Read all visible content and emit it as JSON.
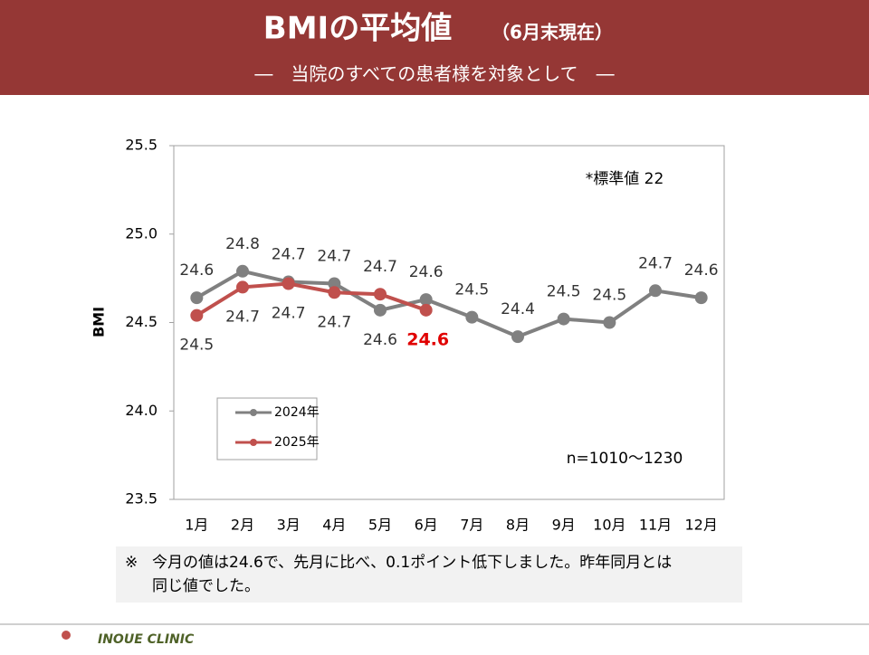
{
  "header": {
    "title": "BMIの平均値",
    "title_note": "（6月末現在）",
    "subtitle": "―　当院のすべての患者様を対象として　―"
  },
  "chart_data": {
    "type": "line",
    "y_label": "BMI",
    "categories": [
      "1月",
      "2月",
      "3月",
      "4月",
      "5月",
      "6月",
      "7月",
      "8月",
      "9月",
      "10月",
      "11月",
      "12月"
    ],
    "series": [
      {
        "name": "2024年",
        "color": "#808080",
        "values": [
          24.64,
          24.79,
          24.73,
          24.72,
          24.57,
          24.63,
          24.53,
          24.42,
          24.52,
          24.5,
          24.68,
          24.64
        ],
        "value_labels": [
          "24.6",
          "24.8",
          "24.7",
          "24.7",
          "24.6",
          "24.6",
          "24.5",
          "24.4",
          "24.5",
          "24.5",
          "24.7",
          "24.6"
        ]
      },
      {
        "name": "2025年",
        "color": "#c0504d",
        "values": [
          24.54,
          24.7,
          24.72,
          24.67,
          24.66,
          24.57,
          null,
          null,
          null,
          null,
          null,
          null
        ],
        "value_labels": [
          "24.5",
          "24.7",
          "24.7",
          "24.7",
          "24.7",
          "24.6",
          null,
          null,
          null,
          null,
          null,
          null
        ]
      }
    ],
    "ylim": [
      23.5,
      25.5
    ],
    "yticks": [
      23.5,
      {
        "value": 24,
        "label": "24.0"
      },
      24.5,
      {
        "value": 25,
        "label": "25.0"
      },
      25.5
    ],
    "annotations": [
      "*標準値 22",
      "n=1010～1230"
    ]
  },
  "note": {
    "mark": "※",
    "text": "今月の値は24.6で、先月に比べ、0.1ポイント低下しました。昨年同月とは同じ値でした。"
  },
  "footer": {
    "clinic": "INOUE CLINIC"
  }
}
